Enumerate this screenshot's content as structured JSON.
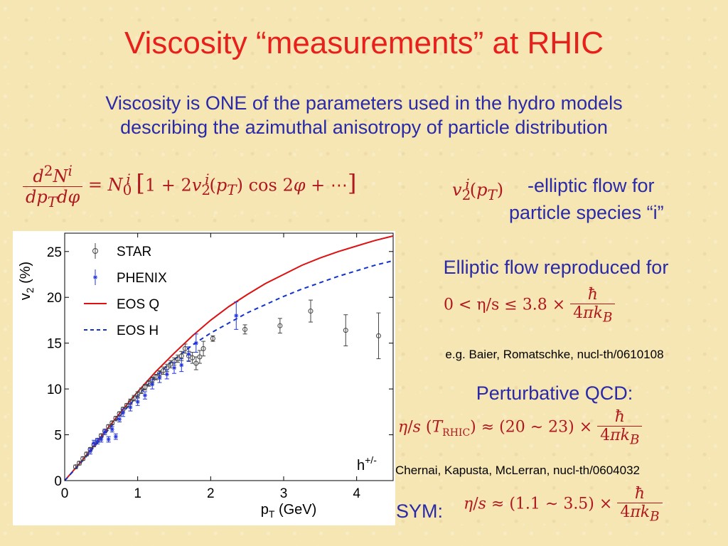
{
  "title": "Viscosity “measurements” at RHIC",
  "subtitle_line1": "Viscosity is ONE of the parameters used in the hydro models",
  "subtitle_line2": "describing the azimuthal anisotropy of particle distribution",
  "flow_text_line1": "-elliptic flow for",
  "flow_text_line2": "particle species “i”",
  "elliptic_reproduced": "Elliptic flow reproduced for",
  "eq2": {
    "lhs": "0 < η/s ≤ 3.8 ×"
  },
  "citation1": "e.g. Baier, Romatschke, nucl-th/0610108",
  "pqcd_label": "Perturbative QCD:",
  "citation2": "Chernai, Kapusta, McLerran, nucl-th/0604032",
  "sym_label": "SYM:",
  "chart_data": {
    "type": "scatter",
    "xlabel": "p_T (GeV)",
    "ylabel": "v_2 (%)",
    "xlim": [
      0,
      4.5
    ],
    "ylim": [
      0,
      27
    ],
    "xticks": [
      "0",
      "1",
      "2",
      "3",
      "4"
    ],
    "yticks": [
      "0",
      "5",
      "10",
      "15",
      "20",
      "25"
    ],
    "annotation": "h+/-",
    "legend_position": "top-left",
    "series": [
      {
        "name": "STAR",
        "style": "circle-errorbar",
        "color": "#444444",
        "x": [
          0.15,
          0.2,
          0.25,
          0.3,
          0.35,
          0.4,
          0.45,
          0.5,
          0.55,
          0.6,
          0.65,
          0.7,
          0.75,
          0.8,
          0.85,
          0.9,
          0.95,
          1.0,
          1.05,
          1.1,
          1.15,
          1.2,
          1.25,
          1.3,
          1.35,
          1.4,
          1.45,
          1.5,
          1.55,
          1.6,
          1.65,
          1.7,
          1.75,
          1.8,
          1.85,
          1.9,
          2.03,
          2.47,
          2.95,
          3.37,
          3.85,
          4.3
        ],
        "y": [
          1.5,
          1.9,
          2.4,
          2.9,
          3.4,
          3.9,
          4.4,
          4.9,
          5.4,
          5.9,
          6.3,
          6.8,
          7.3,
          7.8,
          8.2,
          8.6,
          9.0,
          9.4,
          9.8,
          10.2,
          10.6,
          11.0,
          11.3,
          11.7,
          12.0,
          12.3,
          12.7,
          13.0,
          13.3,
          13.6,
          14.4,
          13.6,
          13.4,
          12.8,
          13.5,
          14.4,
          15.5,
          16.5,
          16.9,
          18.5,
          16.4,
          15.8
        ],
        "err": [
          0.2,
          0.2,
          0.2,
          0.2,
          0.2,
          0.2,
          0.2,
          0.2,
          0.2,
          0.2,
          0.2,
          0.2,
          0.2,
          0.2,
          0.2,
          0.3,
          0.3,
          0.3,
          0.3,
          0.3,
          0.3,
          0.3,
          0.3,
          0.3,
          0.4,
          0.4,
          0.4,
          0.4,
          0.4,
          0.5,
          0.5,
          0.5,
          0.6,
          0.7,
          0.7,
          0.8,
          0.3,
          0.5,
          0.8,
          1.2,
          1.7,
          2.5
        ]
      },
      {
        "name": "PHENIX",
        "style": "star-errorbar",
        "color": "#2233dd",
        "x": [
          0.35,
          0.4,
          0.45,
          0.5,
          0.55,
          0.6,
          0.65,
          0.7,
          0.75,
          0.8,
          0.9,
          1.0,
          1.1,
          1.2,
          1.3,
          1.4,
          1.5,
          1.6,
          1.7,
          1.8,
          2.35
        ],
        "y": [
          3.2,
          4.1,
          4.3,
          4.5,
          5.3,
          4.5,
          5.6,
          4.8,
          6.7,
          7.4,
          8.0,
          8.6,
          9.3,
          10.5,
          11.2,
          11.6,
          12.3,
          12.6,
          13.8,
          15.0,
          18.0
        ],
        "err": [
          0.3,
          0.3,
          0.3,
          0.3,
          0.3,
          0.3,
          0.3,
          0.3,
          0.3,
          0.4,
          0.4,
          0.4,
          0.4,
          0.5,
          0.5,
          0.5,
          0.6,
          0.7,
          0.8,
          1.0,
          1.5
        ]
      },
      {
        "name": "EOS Q",
        "style": "solid-line",
        "color": "#dd1111",
        "x": [
          0.0,
          0.25,
          0.5,
          0.75,
          1.0,
          1.25,
          1.5,
          1.75,
          2.0,
          2.25,
          2.5,
          2.75,
          3.0,
          3.25,
          3.5,
          3.75,
          4.0,
          4.25,
          4.5
        ],
        "y": [
          0.0,
          2.3,
          4.8,
          7.3,
          9.7,
          11.9,
          13.9,
          15.8,
          17.5,
          19.0,
          20.3,
          21.5,
          22.5,
          23.5,
          24.3,
          25.0,
          25.6,
          26.2,
          26.7
        ]
      },
      {
        "name": "EOS H",
        "style": "dashed-line",
        "color": "#1133cc",
        "x": [
          0.0,
          0.25,
          0.5,
          0.75,
          1.0,
          1.25,
          1.5,
          1.75,
          2.0,
          2.25,
          2.5,
          2.75,
          3.0,
          3.25,
          3.5,
          3.75,
          4.0,
          4.25,
          4.5
        ],
        "y": [
          0.0,
          2.2,
          4.6,
          7.0,
          9.3,
          11.4,
          13.2,
          14.8,
          16.1,
          17.2,
          18.3,
          19.2,
          20.1,
          20.9,
          21.6,
          22.3,
          22.9,
          23.5,
          24.0
        ]
      }
    ]
  }
}
